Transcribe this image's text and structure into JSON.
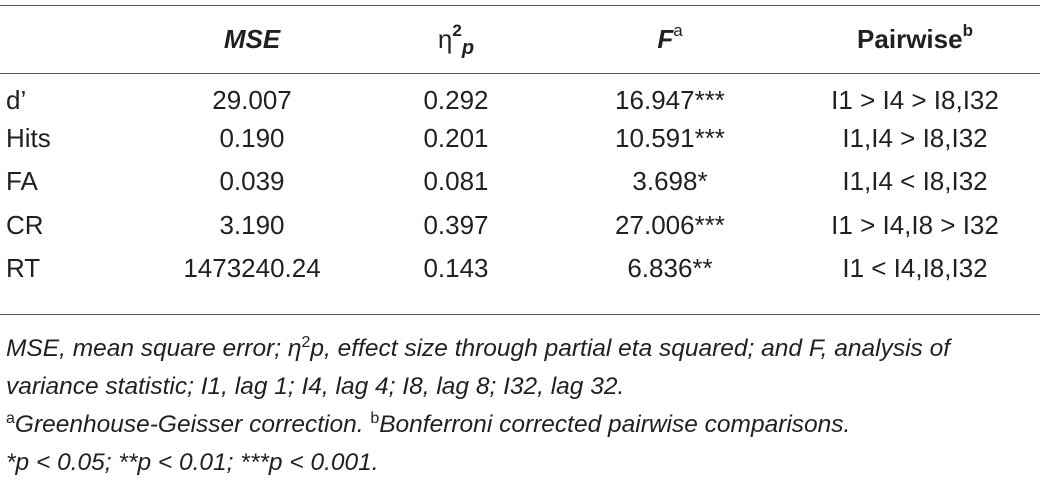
{
  "table": {
    "headers": {
      "col0": "",
      "mse": "MSE",
      "eta_base": "η",
      "eta_sup": "2",
      "eta_sub": "p",
      "f_base": "F",
      "f_sup": "a",
      "pairwise_base": "Pairwise",
      "pairwise_sup": "b"
    },
    "rows": [
      {
        "measure": "d’",
        "mse": "29.007",
        "eta": "0.292",
        "f": "16.947***",
        "pairwise": "I1 > I4 > I8,I32"
      },
      {
        "measure": "Hits",
        "mse": "0.190",
        "eta": "0.201",
        "f": "10.591***",
        "pairwise": "I1,I4 > I8,I32"
      },
      {
        "measure": "FA",
        "mse": "0.039",
        "eta": "0.081",
        "f": "3.698*",
        "pairwise": "I1,I4 < I8,I32"
      },
      {
        "measure": "CR",
        "mse": "3.190",
        "eta": "0.397",
        "f": "27.006***",
        "pairwise": "I1 > I4,I8 > I32"
      },
      {
        "measure": "RT",
        "mse": "1473240.24",
        "eta": "0.143",
        "f": "6.836**",
        "pairwise": "I1 < I4,I8,I32"
      }
    ]
  },
  "notes": {
    "line1_a": "MSE, mean square error; η",
    "line1_sup": "2",
    "line1_b": "p, effect size through partial eta squared; and F, analysis of variance statistic; I1, lag 1; I4, lag 4; I8, lag 8; I32, lag 32.",
    "fn_a_mark": "a",
    "fn_a_text": "Greenhouse-Geisser correction. ",
    "fn_b_mark": "b",
    "fn_b_text": "Bonferroni corrected pairwise comparisons.",
    "significance": "*p < 0.05; **p < 0.01; ***p < 0.001."
  }
}
